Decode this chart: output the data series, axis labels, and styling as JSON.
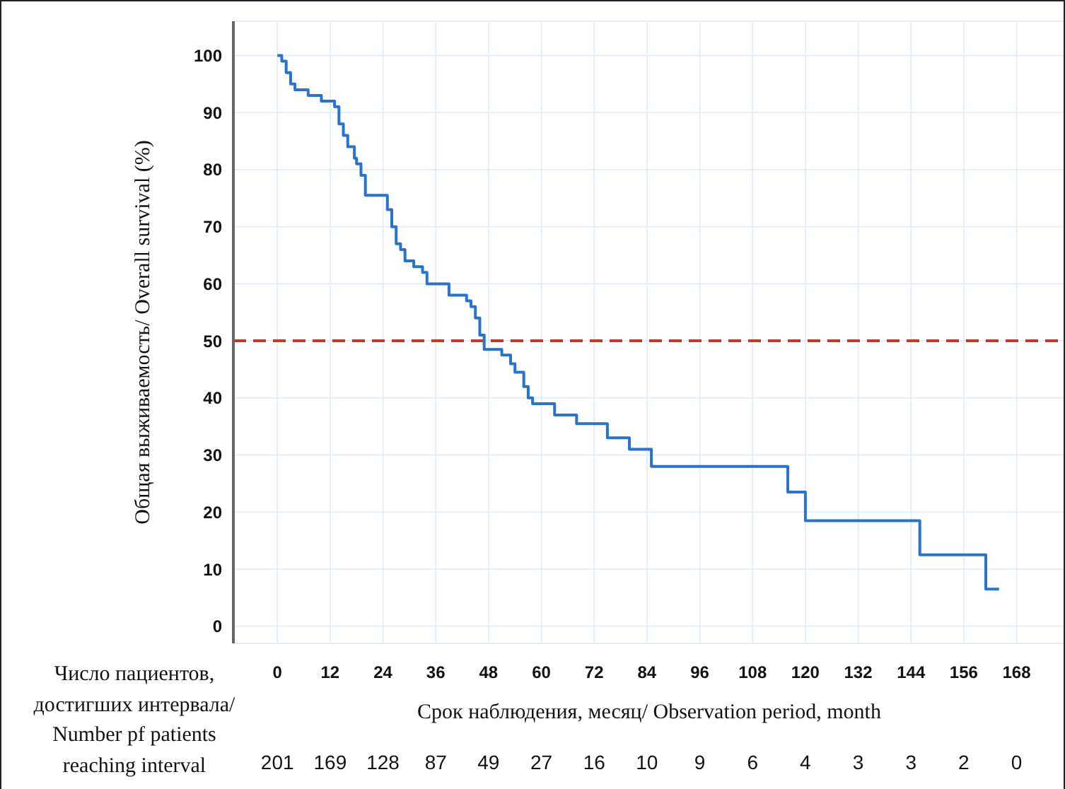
{
  "chart_data": {
    "type": "step",
    "xlabel": "Срок наблюдения, месяц/ Observation period, month",
    "ylabel": "Общая выживаемость/ Overall survival (%)",
    "x": [
      0,
      1,
      2,
      3,
      4,
      7,
      10,
      13,
      14,
      15,
      16,
      17.5,
      18,
      19,
      20,
      25,
      26,
      27,
      28,
      29,
      31,
      33,
      34,
      39,
      43,
      44,
      45,
      46,
      47,
      51,
      53,
      54,
      56,
      57,
      58,
      63,
      68,
      75,
      80,
      85,
      116,
      120,
      146,
      161,
      164
    ],
    "series": [
      {
        "color": "#2a73c8",
        "values": [
          100,
          99,
          97,
          95,
          94,
          93,
          92,
          91,
          88,
          86,
          84,
          82,
          81,
          79,
          75.5,
          73,
          70,
          67,
          66,
          64,
          63,
          62,
          60,
          58,
          57,
          56,
          54,
          51,
          48.5,
          47.5,
          46,
          44.5,
          42,
          40,
          39,
          37,
          35.5,
          33,
          31,
          28,
          23.5,
          18.5,
          12.5,
          6.5,
          6.5
        ]
      }
    ],
    "xlim": [
      -10,
      179
    ],
    "xticks": [
      0,
      12,
      24,
      36,
      48,
      60,
      72,
      84,
      96,
      108,
      120,
      132,
      144,
      156,
      168
    ],
    "ylim": [
      -3,
      106
    ],
    "yticks": [
      0,
      10,
      20,
      30,
      40,
      50,
      60,
      70,
      80,
      90,
      100
    ],
    "grid": true,
    "marker": "none",
    "line_style": "solid",
    "ref_lines": [
      {
        "axis": "y",
        "value": 50,
        "color": "#c0392b",
        "line_style": "dashed"
      }
    ],
    "annotations": [
      "Число пациентов,\nдостигших интервала/\nNumber pf patients\nreaching interval",
      "201",
      "169",
      "128",
      "87",
      "49",
      "27",
      "16",
      "10",
      "9",
      "6",
      "4",
      "3",
      "3",
      "2",
      "0"
    ]
  }
}
